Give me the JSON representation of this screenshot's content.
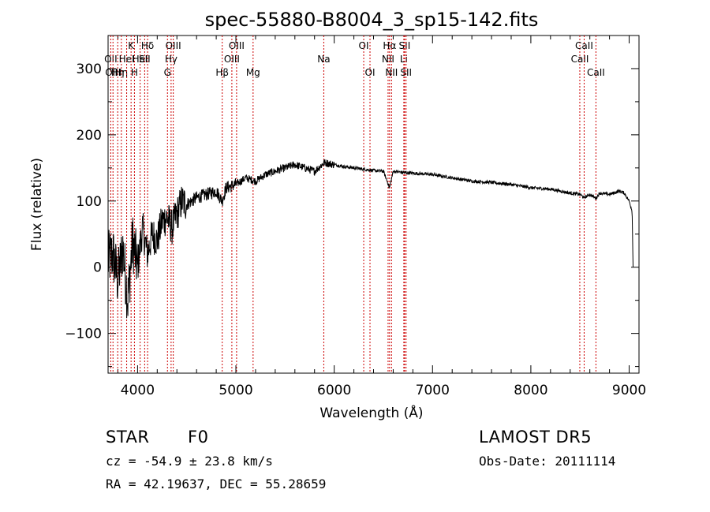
{
  "chart_data": {
    "type": "line",
    "title": "spec-55880-B8004_3_sp15-142.fits",
    "xlabel": "Wavelength (Å)",
    "ylabel": "Flux (relative)",
    "xlim": [
      3700,
      9100
    ],
    "ylim": [
      -160,
      350
    ],
    "xticks": [
      4000,
      5000,
      6000,
      7000,
      8000,
      9000
    ],
    "yticks": [
      -100,
      0,
      100,
      200,
      300
    ],
    "grid": false,
    "line_color": "#000000",
    "marker_line_color": "#cc0000",
    "series": [
      {
        "x": [
          3700,
          3750,
          3800,
          3850,
          3900,
          3950,
          4000,
          4050,
          4100,
          4150,
          4200,
          4250,
          4300,
          4350,
          4400,
          4450,
          4500,
          4600,
          4700,
          4800,
          4860,
          4900,
          5000,
          5100,
          5200,
          5300,
          5400,
          5500,
          5600,
          5700,
          5800,
          5900,
          6000,
          6100,
          6200,
          6300,
          6400,
          6500,
          6563,
          6600,
          6700,
          6800,
          7000,
          7200,
          7400,
          7600,
          7800,
          8000,
          8200,
          8400,
          8500,
          8542,
          8600,
          8662,
          8700,
          8800,
          8900,
          8950,
          9000,
          9030,
          9040
        ],
        "y": [
          10,
          20,
          -20,
          30,
          -50,
          40,
          0,
          60,
          20,
          50,
          40,
          70,
          75,
          60,
          80,
          100,
          95,
          105,
          110,
          115,
          100,
          120,
          125,
          135,
          130,
          140,
          145,
          150,
          155,
          150,
          145,
          158,
          155,
          152,
          150,
          148,
          146,
          145,
          120,
          145,
          143,
          142,
          140,
          135,
          130,
          128,
          125,
          120,
          118,
          112,
          110,
          105,
          110,
          104,
          112,
          110,
          115,
          112,
          100,
          85,
          0
        ]
      }
    ],
    "lines": [
      {
        "x": 3727,
        "label": "OII",
        "row": 1
      },
      {
        "x": 3750,
        "label": "OIII",
        "row": 2
      },
      {
        "x": 3798,
        "label": "Hη",
        "row": 2
      },
      {
        "x": 3835,
        "label": "Hη",
        "row": 2
      },
      {
        "x": 3889,
        "label": "HeI",
        "row": 1
      },
      {
        "x": 3934,
        "label": "K",
        "row": 0
      },
      {
        "x": 3968,
        "label": "H",
        "row": 2
      },
      {
        "x": 4026,
        "label": "HeI",
        "row": 1
      },
      {
        "x": 4072,
        "label": "SII",
        "row": 1
      },
      {
        "x": 4102,
        "label": "Hδ",
        "row": 0
      },
      {
        "x": 4304,
        "label": "G",
        "row": 2
      },
      {
        "x": 4341,
        "label": "Hγ",
        "row": 1
      },
      {
        "x": 4363,
        "label": "OIII",
        "row": 0
      },
      {
        "x": 4861,
        "label": "Hβ",
        "row": 2
      },
      {
        "x": 4959,
        "label": "OIII",
        "row": 1
      },
      {
        "x": 5007,
        "label": "OIII",
        "row": 0
      },
      {
        "x": 5175,
        "label": "Mg",
        "row": 2
      },
      {
        "x": 5894,
        "label": "Na",
        "row": 1
      },
      {
        "x": 6300,
        "label": "OI",
        "row": 0
      },
      {
        "x": 6364,
        "label": "OI",
        "row": 2
      },
      {
        "x": 6548,
        "label": "NII",
        "row": 1
      },
      {
        "x": 6563,
        "label": "Hα",
        "row": 0
      },
      {
        "x": 6583,
        "label": "NII",
        "row": 2
      },
      {
        "x": 6708,
        "label": "Li",
        "row": 1
      },
      {
        "x": 6716,
        "label": "SII",
        "row": 0
      },
      {
        "x": 6731,
        "label": "SII",
        "row": 2
      },
      {
        "x": 8498,
        "label": "CaII",
        "row": 1
      },
      {
        "x": 8542,
        "label": "CaII",
        "row": 0
      },
      {
        "x": 8662,
        "label": "CaII",
        "row": 2
      }
    ]
  },
  "info": {
    "class_label": "STAR",
    "subclass": "F0",
    "survey": "LAMOST DR5",
    "cz": "cz = -54.9 ± 23.8 km/s",
    "obs_date": "Obs-Date: 20111114",
    "coords": "RA =  42.19637, DEC =  55.28659"
  }
}
